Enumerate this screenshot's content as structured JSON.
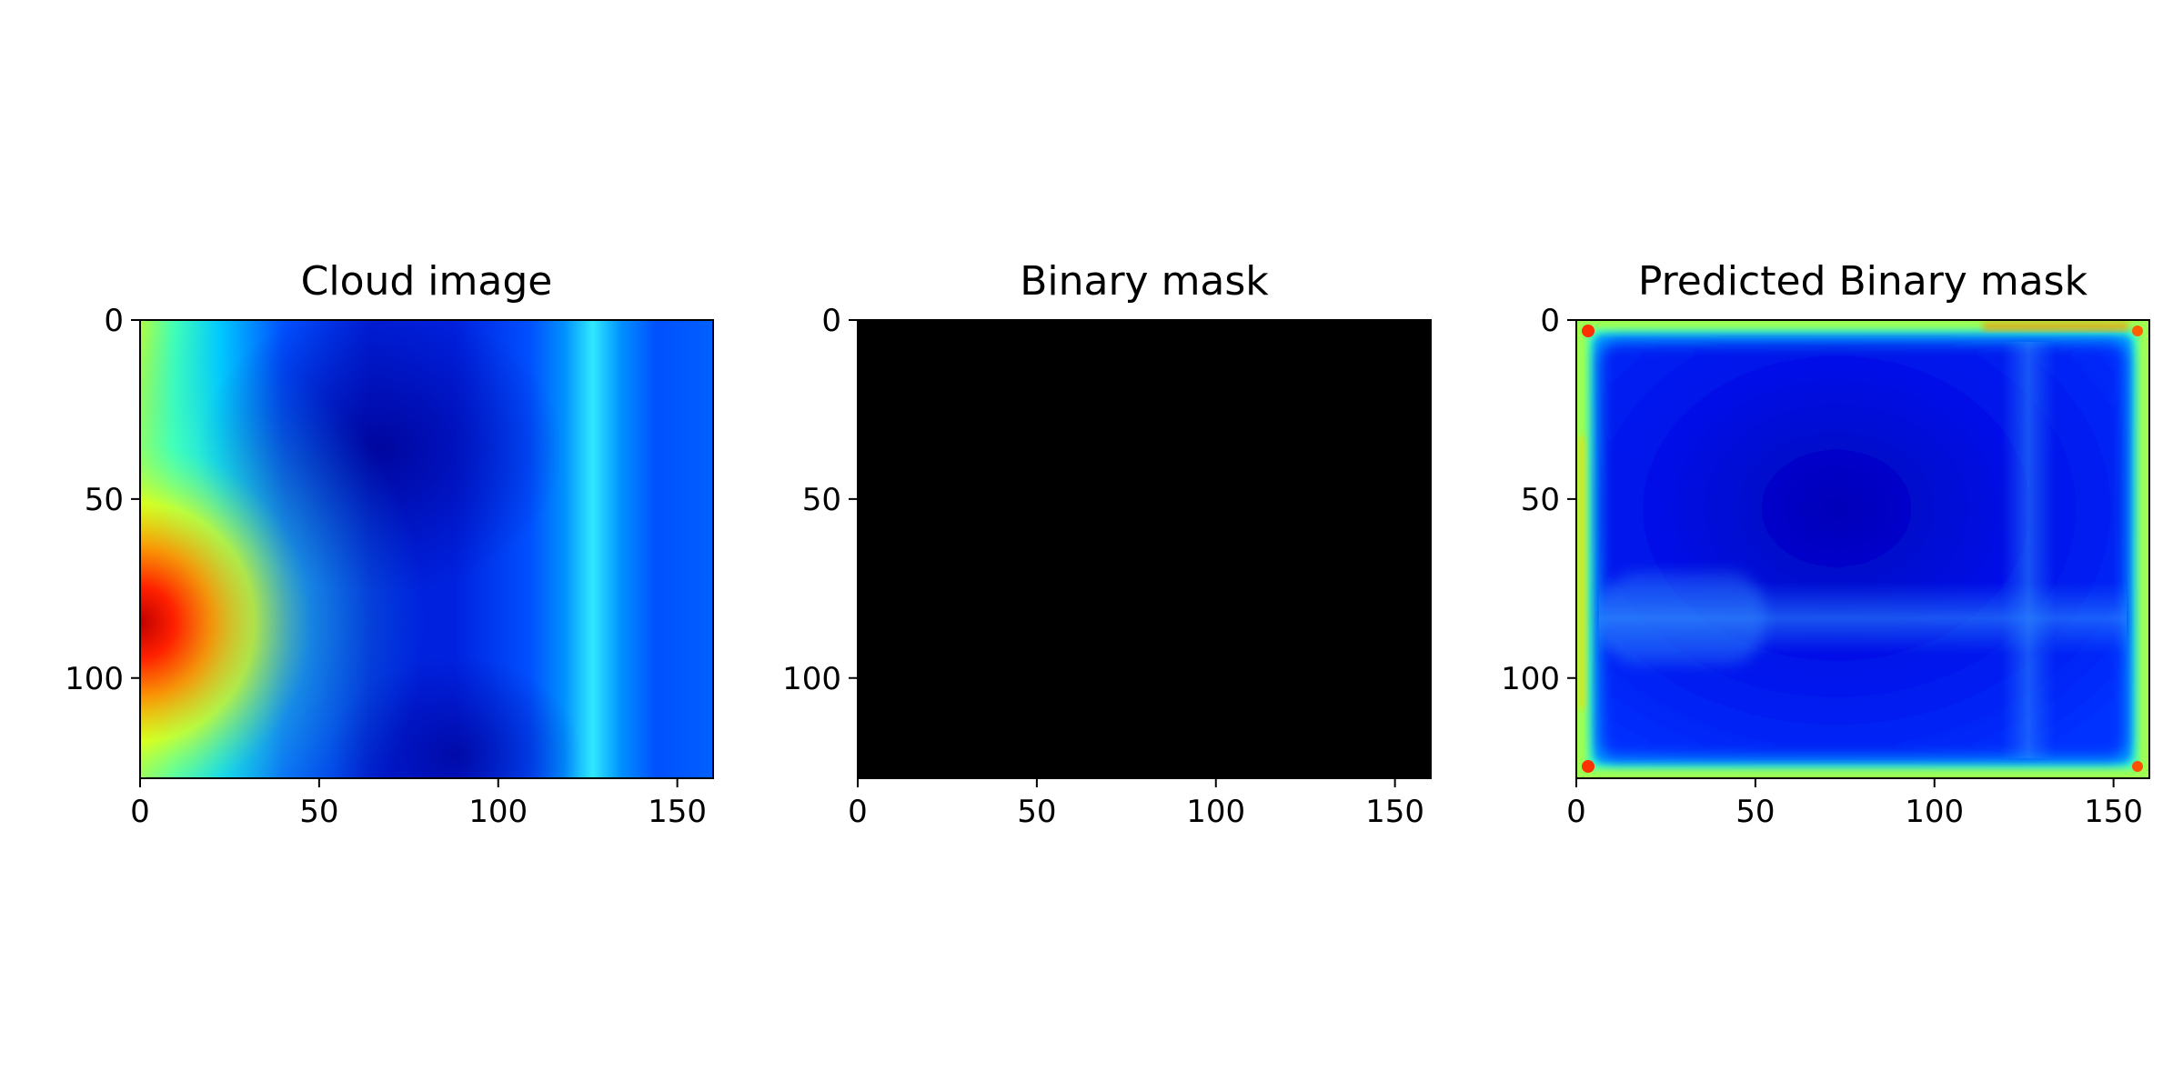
{
  "chart_data": [
    {
      "type": "heatmap",
      "title": "Cloud image",
      "colormap": "jet",
      "grid": false,
      "image_extent": {
        "x": [
          0,
          160
        ],
        "y": [
          0,
          128
        ]
      },
      "y_inverted": true,
      "x_ticks": [
        0,
        50,
        100,
        150
      ],
      "y_ticks": [
        0,
        50,
        100
      ],
      "content": "smooth field: red peak at left edge around row 85 (yellow/green band along left side), dark blue lows near columns 60-90, light-blue/cyan vertical band near column 127"
    },
    {
      "type": "heatmap",
      "title": "Binary mask",
      "colormap": "gray",
      "grid": false,
      "image_extent": {
        "x": [
          0,
          160
        ],
        "y": [
          0,
          128
        ]
      },
      "y_inverted": true,
      "x_ticks": [
        0,
        50,
        100,
        150
      ],
      "y_ticks": [
        0,
        50,
        100
      ],
      "content": "uniform black (all zeros)"
    },
    {
      "type": "heatmap",
      "title": "Predicted Binary mask",
      "colormap": "jet",
      "grid": false,
      "image_extent": {
        "x": [
          0,
          160
        ],
        "y": [
          0,
          128
        ]
      },
      "y_inverted": true,
      "x_ticks": [
        0,
        50,
        100,
        150
      ],
      "y_ticks": [
        0,
        50,
        100
      ],
      "content": "blue interior with darker blue lows, thin yellow/green frame along all four borders with orange-red spots near the corners, faint lighter bands near row 85 and column 130"
    }
  ]
}
